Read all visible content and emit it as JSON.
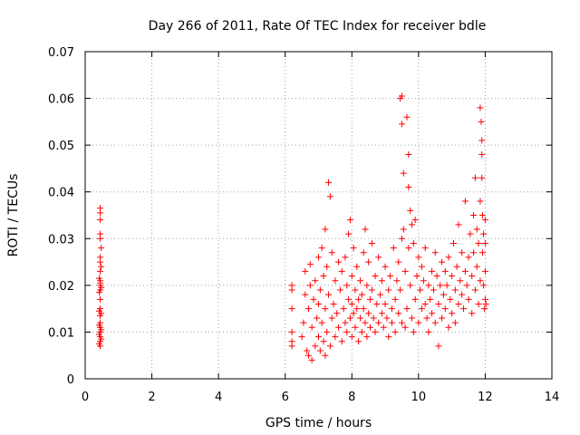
{
  "chart_data": {
    "type": "scatter",
    "title": "Day 266 of 2011, Rate Of TEC Index for receiver bdle",
    "xlabel": "GPS time / hours",
    "ylabel": "ROTI / TECUs",
    "xlim": [
      0,
      14
    ],
    "ylim": [
      0,
      0.07
    ],
    "xticks": [
      0,
      2,
      4,
      6,
      8,
      10,
      12,
      14
    ],
    "yticks": [
      0,
      0.01,
      0.02,
      0.03,
      0.04,
      0.05,
      0.06,
      0.07
    ],
    "xtick_labels": [
      "0",
      "2",
      "4",
      "6",
      "8",
      "10",
      "12",
      "14"
    ],
    "ytick_labels": [
      "0",
      "0.01",
      "0.02",
      "0.03",
      "0.04",
      "0.05",
      "0.06",
      "0.07"
    ],
    "grid": true,
    "legend": "none",
    "marker": "+",
    "color": "#ff0000",
    "series": [
      {
        "name": "ROTI",
        "points": [
          [
            0.45,
            0.007
          ],
          [
            0.45,
            0.008
          ],
          [
            0.45,
            0.009
          ],
          [
            0.45,
            0.01
          ],
          [
            0.45,
            0.011
          ],
          [
            0.45,
            0.012
          ],
          [
            0.45,
            0.0135
          ],
          [
            0.45,
            0.015
          ],
          [
            0.45,
            0.017
          ],
          [
            0.45,
            0.019
          ],
          [
            0.45,
            0.02
          ],
          [
            0.45,
            0.0205
          ],
          [
            0.45,
            0.021
          ],
          [
            0.45,
            0.023
          ],
          [
            0.45,
            0.025
          ],
          [
            0.45,
            0.026
          ],
          [
            0.45,
            0.03
          ],
          [
            0.45,
            0.031
          ],
          [
            0.45,
            0.034
          ],
          [
            0.45,
            0.0355
          ],
          [
            0.45,
            0.0365
          ],
          [
            0.42,
            0.0075
          ],
          [
            0.42,
            0.0095
          ],
          [
            0.42,
            0.0115
          ],
          [
            0.42,
            0.0145
          ],
          [
            0.42,
            0.0185
          ],
          [
            0.42,
            0.0215
          ],
          [
            0.48,
            0.0085
          ],
          [
            0.48,
            0.0105
          ],
          [
            0.48,
            0.014
          ],
          [
            0.48,
            0.0195
          ],
          [
            0.48,
            0.024
          ],
          [
            0.48,
            0.028
          ],
          [
            6.2,
            0.007
          ],
          [
            6.2,
            0.008
          ],
          [
            6.2,
            0.01
          ],
          [
            6.2,
            0.015
          ],
          [
            6.2,
            0.019
          ],
          [
            6.2,
            0.02
          ],
          [
            6.5,
            0.009
          ],
          [
            6.55,
            0.012
          ],
          [
            6.6,
            0.018
          ],
          [
            6.6,
            0.023
          ],
          [
            6.65,
            0.006
          ],
          [
            6.7,
            0.005
          ],
          [
            6.7,
            0.015
          ],
          [
            6.75,
            0.02
          ],
          [
            6.75,
            0.0245
          ],
          [
            6.8,
            0.004
          ],
          [
            6.8,
            0.011
          ],
          [
            6.85,
            0.017
          ],
          [
            6.9,
            0.007
          ],
          [
            6.9,
            0.021
          ],
          [
            6.95,
            0.013
          ],
          [
            7.0,
            0.009
          ],
          [
            7.0,
            0.016
          ],
          [
            7.0,
            0.026
          ],
          [
            7.05,
            0.006
          ],
          [
            7.05,
            0.019
          ],
          [
            7.1,
            0.012
          ],
          [
            7.1,
            0.028
          ],
          [
            7.15,
            0.008
          ],
          [
            7.15,
            0.022
          ],
          [
            7.2,
            0.005
          ],
          [
            7.2,
            0.015
          ],
          [
            7.2,
            0.032
          ],
          [
            7.25,
            0.01
          ],
          [
            7.25,
            0.024
          ],
          [
            7.3,
            0.018
          ],
          [
            7.3,
            0.042
          ],
          [
            7.35,
            0.007
          ],
          [
            7.35,
            0.039
          ],
          [
            7.4,
            0.013
          ],
          [
            7.4,
            0.027
          ],
          [
            7.45,
            0.016
          ],
          [
            7.5,
            0.009
          ],
          [
            7.5,
            0.021
          ],
          [
            7.55,
            0.014
          ],
          [
            7.6,
            0.025
          ],
          [
            7.6,
            0.011
          ],
          [
            7.65,
            0.019
          ],
          [
            7.7,
            0.008
          ],
          [
            7.7,
            0.023
          ],
          [
            7.75,
            0.015
          ],
          [
            7.8,
            0.012
          ],
          [
            7.8,
            0.026
          ],
          [
            7.85,
            0.01
          ],
          [
            7.85,
            0.02
          ],
          [
            7.9,
            0.017
          ],
          [
            7.9,
            0.031
          ],
          [
            7.95,
            0.013
          ],
          [
            7.95,
            0.034
          ],
          [
            8.0,
            0.009
          ],
          [
            8.0,
            0.016
          ],
          [
            8.0,
            0.022
          ],
          [
            8.05,
            0.014
          ],
          [
            8.05,
            0.028
          ],
          [
            8.1,
            0.011
          ],
          [
            8.1,
            0.019
          ],
          [
            8.15,
            0.015
          ],
          [
            8.15,
            0.024
          ],
          [
            8.2,
            0.008
          ],
          [
            8.2,
            0.017
          ],
          [
            8.25,
            0.013
          ],
          [
            8.25,
            0.021
          ],
          [
            8.3,
            0.01
          ],
          [
            8.3,
            0.018
          ],
          [
            8.35,
            0.015
          ],
          [
            8.35,
            0.027
          ],
          [
            8.4,
            0.012
          ],
          [
            8.4,
            0.032
          ],
          [
            8.45,
            0.009
          ],
          [
            8.45,
            0.02
          ],
          [
            8.5,
            0.014
          ],
          [
            8.5,
            0.025
          ],
          [
            8.55,
            0.011
          ],
          [
            8.55,
            0.017
          ],
          [
            8.6,
            0.019
          ],
          [
            8.6,
            0.029
          ],
          [
            8.65,
            0.013
          ],
          [
            8.7,
            0.01
          ],
          [
            8.7,
            0.022
          ],
          [
            8.75,
            0.016
          ],
          [
            8.8,
            0.012
          ],
          [
            8.8,
            0.026
          ],
          [
            8.85,
            0.018
          ],
          [
            8.9,
            0.014
          ],
          [
            8.9,
            0.021
          ],
          [
            8.95,
            0.011
          ],
          [
            9.0,
            0.016
          ],
          [
            9.0,
            0.024
          ],
          [
            9.05,
            0.013
          ],
          [
            9.1,
            0.019
          ],
          [
            9.1,
            0.009
          ],
          [
            9.15,
            0.022
          ],
          [
            9.2,
            0.015
          ],
          [
            9.2,
            0.012
          ],
          [
            9.25,
            0.028
          ],
          [
            9.3,
            0.017
          ],
          [
            9.3,
            0.01
          ],
          [
            9.35,
            0.021
          ],
          [
            9.4,
            0.014
          ],
          [
            9.4,
            0.025
          ],
          [
            9.45,
            0.019
          ],
          [
            9.5,
            0.012
          ],
          [
            9.5,
            0.03
          ],
          [
            9.45,
            0.06
          ],
          [
            9.5,
            0.0605
          ],
          [
            9.5,
            0.0545
          ],
          [
            9.55,
            0.044
          ],
          [
            9.55,
            0.032
          ],
          [
            9.6,
            0.023
          ],
          [
            9.6,
            0.011
          ],
          [
            9.65,
            0.015
          ],
          [
            9.65,
            0.056
          ],
          [
            9.7,
            0.048
          ],
          [
            9.7,
            0.041
          ],
          [
            9.7,
            0.028
          ],
          [
            9.75,
            0.02
          ],
          [
            9.75,
            0.036
          ],
          [
            9.8,
            0.013
          ],
          [
            9.8,
            0.033
          ],
          [
            9.85,
            0.01
          ],
          [
            9.85,
            0.029
          ],
          [
            9.9,
            0.017
          ],
          [
            9.9,
            0.034
          ],
          [
            9.95,
            0.022
          ],
          [
            10.0,
            0.012
          ],
          [
            10.0,
            0.026
          ],
          [
            10.05,
            0.019
          ],
          [
            10.1,
            0.015
          ],
          [
            10.1,
            0.024
          ],
          [
            10.15,
            0.021
          ],
          [
            10.2,
            0.016
          ],
          [
            10.2,
            0.028
          ],
          [
            10.25,
            0.013
          ],
          [
            10.3,
            0.02
          ],
          [
            10.3,
            0.01
          ],
          [
            10.35,
            0.017
          ],
          [
            10.4,
            0.023
          ],
          [
            10.4,
            0.014
          ],
          [
            10.45,
            0.019
          ],
          [
            10.5,
            0.012
          ],
          [
            10.5,
            0.027
          ],
          [
            10.55,
            0.022
          ],
          [
            10.6,
            0.016
          ],
          [
            10.6,
            0.007
          ],
          [
            10.65,
            0.02
          ],
          [
            10.7,
            0.013
          ],
          [
            10.7,
            0.025
          ],
          [
            10.75,
            0.018
          ],
          [
            10.8,
            0.015
          ],
          [
            10.8,
            0.023
          ],
          [
            10.85,
            0.02
          ],
          [
            10.9,
            0.011
          ],
          [
            10.9,
            0.026
          ],
          [
            10.95,
            0.017
          ],
          [
            11.0,
            0.014
          ],
          [
            11.0,
            0.022
          ],
          [
            11.05,
            0.029
          ],
          [
            11.1,
            0.019
          ],
          [
            11.1,
            0.012
          ],
          [
            11.15,
            0.024
          ],
          [
            11.2,
            0.016
          ],
          [
            11.2,
            0.033
          ],
          [
            11.25,
            0.021
          ],
          [
            11.3,
            0.018
          ],
          [
            11.3,
            0.027
          ],
          [
            11.35,
            0.015
          ],
          [
            11.4,
            0.023
          ],
          [
            11.4,
            0.038
          ],
          [
            11.45,
            0.02
          ],
          [
            11.5,
            0.026
          ],
          [
            11.5,
            0.017
          ],
          [
            11.55,
            0.031
          ],
          [
            11.6,
            0.022
          ],
          [
            11.6,
            0.014
          ],
          [
            11.65,
            0.035
          ],
          [
            11.65,
            0.027
          ],
          [
            11.7,
            0.043
          ],
          [
            11.7,
            0.019
          ],
          [
            11.75,
            0.024
          ],
          [
            11.75,
            0.032
          ],
          [
            11.8,
            0.016
          ],
          [
            11.8,
            0.029
          ],
          [
            11.85,
            0.021
          ],
          [
            11.85,
            0.038
          ],
          [
            11.85,
            0.058
          ],
          [
            11.88,
            0.055
          ],
          [
            11.9,
            0.051
          ],
          [
            11.9,
            0.048
          ],
          [
            11.9,
            0.043
          ],
          [
            11.92,
            0.035
          ],
          [
            11.92,
            0.027
          ],
          [
            11.95,
            0.02
          ],
          [
            11.95,
            0.031
          ],
          [
            11.98,
            0.015
          ],
          [
            12.0,
            0.017
          ],
          [
            12.0,
            0.023
          ],
          [
            12.0,
            0.029
          ],
          [
            12.0,
            0.034
          ],
          [
            12.02,
            0.016
          ]
        ]
      }
    ]
  }
}
